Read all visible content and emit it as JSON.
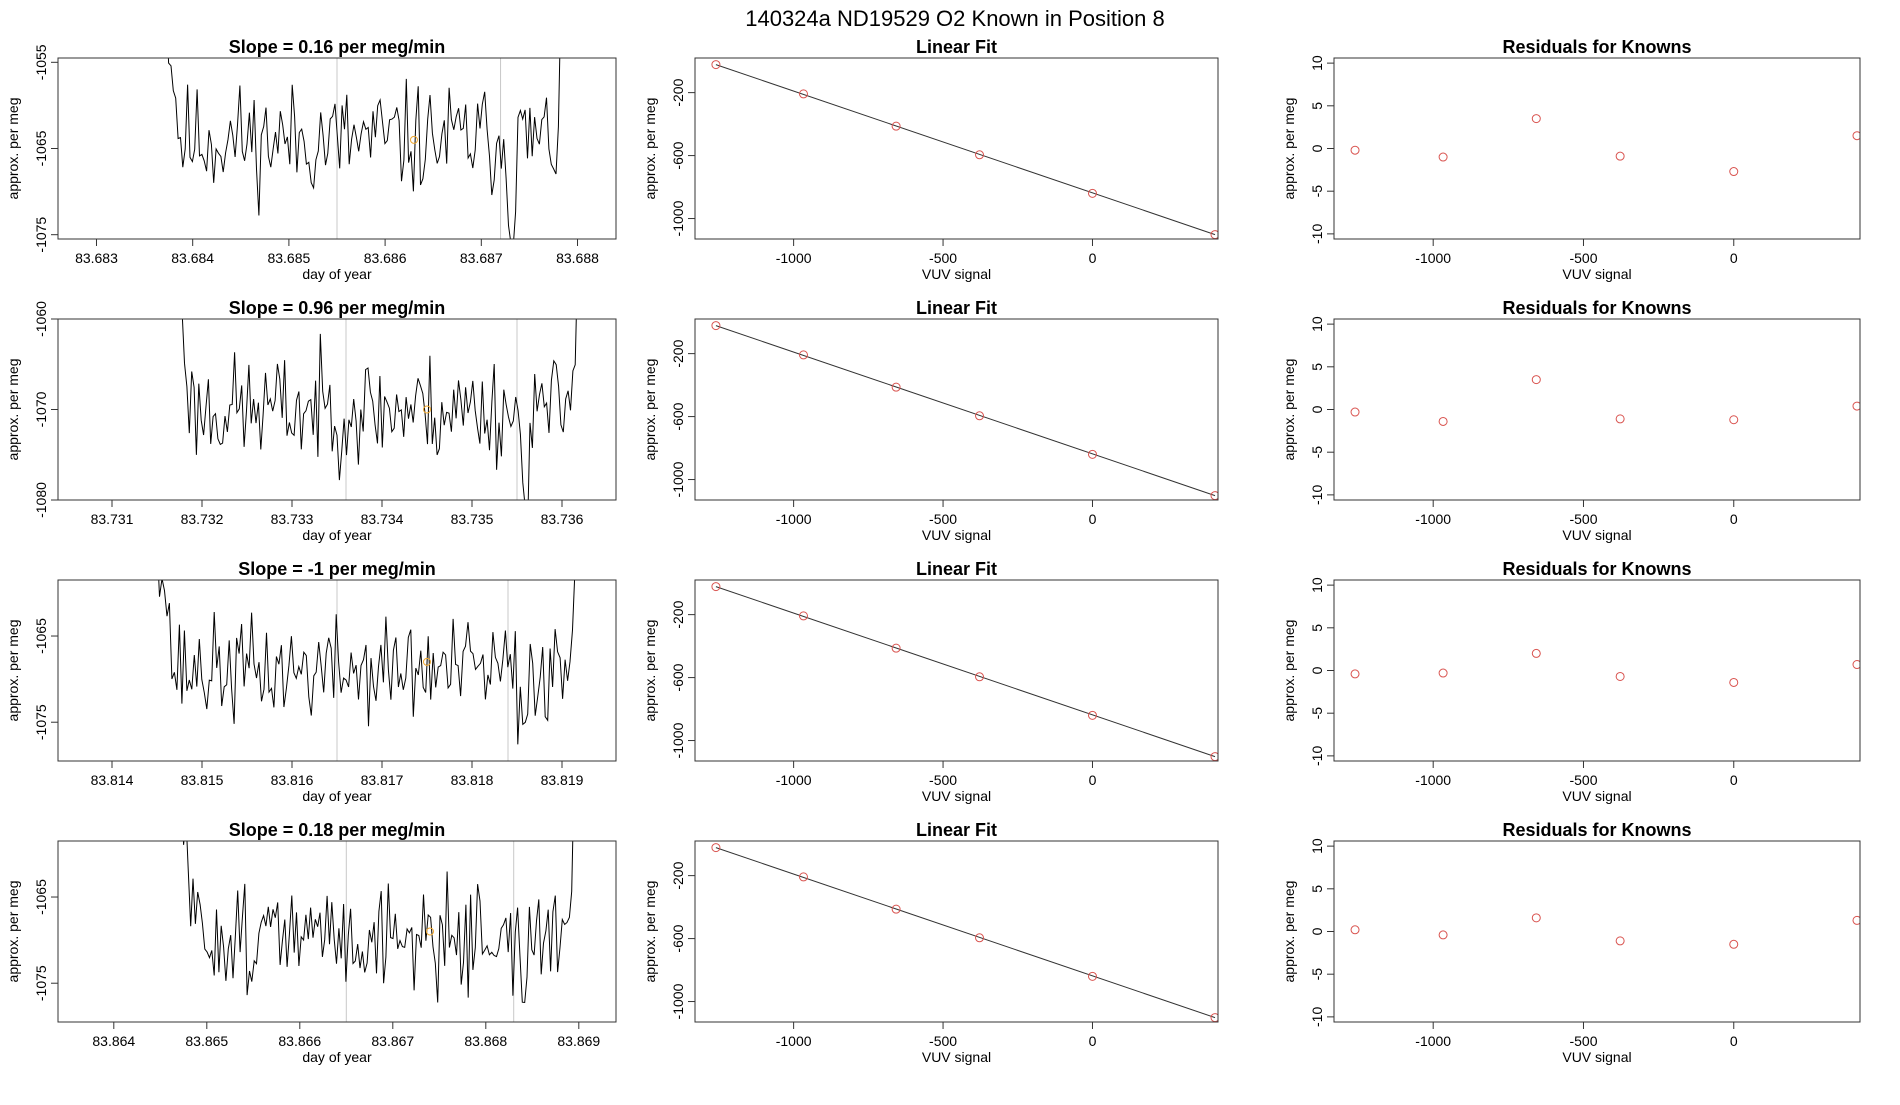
{
  "figure": {
    "title": "140324a      ND19529    O2 Known in Position  8"
  },
  "chart_data": [
    {
      "type": "line",
      "panel": "trace",
      "row": 0,
      "title": "Slope =  0.16  per meg/min",
      "xlabel": "day of year",
      "ylabel": "approx. per meg",
      "xlim": [
        83.6826,
        83.6884
      ],
      "ylim": [
        -1075.5,
        -1054.5
      ],
      "xticks": [
        83.683,
        83.684,
        83.685,
        83.686,
        83.687,
        83.688
      ],
      "xtick_labels": [
        "83.683",
        "83.684",
        "83.685",
        "83.686",
        "83.687",
        "83.688"
      ],
      "yticks": [
        -1055,
        -1065,
        -1075
      ],
      "ytick_labels": [
        "-1055",
        "-1065",
        "-1075"
      ],
      "vlines": [
        83.6855,
        83.6872
      ],
      "marker": {
        "x": 83.6863,
        "y": -1064
      },
      "trace_start": 83.6837,
      "trace_end": 83.6879,
      "trace_seed": 11,
      "trace_level": -1064,
      "trace_spread": 3.2,
      "grid": false,
      "legend": "none"
    },
    {
      "type": "scatter",
      "panel": "fit",
      "row": 0,
      "title": "Linear Fit",
      "xlabel": "VUV signal",
      "ylabel": "approx. per meg",
      "xlim": [
        -1330,
        420
      ],
      "ylim": [
        -1130,
        20
      ],
      "xticks": [
        -1000,
        -500,
        0
      ],
      "xtick_labels": [
        "-1000",
        "-500",
        "0"
      ],
      "yticks": [
        -200,
        -600,
        -1000
      ],
      "ytick_labels": [
        "-200",
        "-600",
        "-1000"
      ],
      "x": [
        -1260,
        -967,
        -657,
        -378,
        0,
        410
      ],
      "y": [
        -22,
        -208,
        -413,
        -595,
        -840,
        -1102
      ],
      "fit_line": {
        "x": [
          -1260,
          410
        ],
        "y": [
          -22,
          -1102
        ]
      },
      "grid": false,
      "legend": "none"
    },
    {
      "type": "scatter",
      "panel": "residuals",
      "row": 0,
      "title": "Residuals for Knowns",
      "xlabel": "VUV signal",
      "ylabel": "approx. per meg",
      "xlim": [
        -1330,
        420
      ],
      "ylim": [
        -10.6,
        10.6
      ],
      "xticks": [
        -1000,
        -500,
        0
      ],
      "xtick_labels": [
        "-1000",
        "-500",
        "0"
      ],
      "yticks": [
        10,
        5,
        0,
        -5,
        -10
      ],
      "ytick_labels": [
        "10",
        "5",
        "0",
        "-5",
        "-10"
      ],
      "x": [
        -1260,
        -967,
        -657,
        -378,
        0,
        410
      ],
      "y": [
        -0.2,
        -1.0,
        3.5,
        -0.9,
        -2.7,
        1.5
      ],
      "grid": false,
      "legend": "none"
    },
    {
      "type": "line",
      "panel": "trace",
      "row": 1,
      "title": "Slope =  0.96  per meg/min",
      "xlabel": "day of year",
      "ylabel": "approx. per meg",
      "xlim": [
        83.7304,
        83.7366
      ],
      "ylim": [
        -1080,
        -1060
      ],
      "xticks": [
        83.731,
        83.732,
        83.733,
        83.734,
        83.735,
        83.736
      ],
      "xtick_labels": [
        "83.731",
        "83.732",
        "83.733",
        "83.734",
        "83.735",
        "83.736"
      ],
      "yticks": [
        -1060,
        -1070,
        -1080
      ],
      "ytick_labels": [
        "-1060",
        "-1070",
        "-1080"
      ],
      "vlines": [
        83.7336,
        83.7355
      ],
      "marker": {
        "x": 83.7345,
        "y": -1070
      },
      "trace_start": 83.7317,
      "trace_end": 83.7362,
      "trace_seed": 23,
      "trace_level": -1070,
      "trace_spread": 3.0,
      "grid": false,
      "legend": "none"
    },
    {
      "type": "scatter",
      "panel": "fit",
      "row": 1,
      "title": "Linear Fit",
      "xlabel": "VUV signal",
      "ylabel": "approx. per meg",
      "xlim": [
        -1330,
        420
      ],
      "ylim": [
        -1130,
        20
      ],
      "xticks": [
        -1000,
        -500,
        0
      ],
      "xtick_labels": [
        "-1000",
        "-500",
        "0"
      ],
      "yticks": [
        -200,
        -600,
        -1000
      ],
      "ytick_labels": [
        "-200",
        "-600",
        "-1000"
      ],
      "x": [
        -1260,
        -967,
        -657,
        -378,
        0,
        410
      ],
      "y": [
        -22,
        -208,
        -413,
        -595,
        -840,
        -1102
      ],
      "fit_line": {
        "x": [
          -1260,
          410
        ],
        "y": [
          -22,
          -1102
        ]
      },
      "grid": false,
      "legend": "none"
    },
    {
      "type": "scatter",
      "panel": "residuals",
      "row": 1,
      "title": "Residuals for Knowns",
      "xlabel": "VUV signal",
      "ylabel": "approx. per meg",
      "xlim": [
        -1330,
        420
      ],
      "ylim": [
        -10.6,
        10.6
      ],
      "xticks": [
        -1000,
        -500,
        0
      ],
      "xtick_labels": [
        "-1000",
        "-500",
        "0"
      ],
      "yticks": [
        10,
        5,
        0,
        -5,
        -10
      ],
      "ytick_labels": [
        "10",
        "5",
        "0",
        "-5",
        "-10"
      ],
      "x": [
        -1260,
        -967,
        -657,
        -378,
        0,
        410
      ],
      "y": [
        -0.3,
        -1.4,
        3.5,
        -1.1,
        -1.2,
        0.4
      ],
      "grid": false,
      "legend": "none"
    },
    {
      "type": "line",
      "panel": "trace",
      "row": 2,
      "title": "Slope =  -1  per meg/min",
      "xlabel": "day of year",
      "ylabel": "approx. per meg",
      "xlim": [
        83.8134,
        83.8196
      ],
      "ylim": [
        -1079.5,
        -1058.5
      ],
      "xticks": [
        83.814,
        83.815,
        83.816,
        83.817,
        83.818,
        83.819
      ],
      "xtick_labels": [
        "83.814",
        "83.815",
        "83.816",
        "83.817",
        "83.818",
        "83.819"
      ],
      "yticks": [
        -1065,
        -1075
      ],
      "ytick_labels": [
        "-1065",
        "-1075"
      ],
      "vlines": [
        83.8165,
        83.8184
      ],
      "marker": {
        "x": 83.8175,
        "y": -1068
      },
      "trace_start": 83.8145,
      "trace_end": 83.8192,
      "trace_seed": 37,
      "trace_level": -1069,
      "trace_spread": 3.0,
      "grid": false,
      "legend": "none"
    },
    {
      "type": "scatter",
      "panel": "fit",
      "row": 2,
      "title": "Linear Fit",
      "xlabel": "VUV signal",
      "ylabel": "approx. per meg",
      "xlim": [
        -1330,
        420
      ],
      "ylim": [
        -1130,
        20
      ],
      "xticks": [
        -1000,
        -500,
        0
      ],
      "xtick_labels": [
        "-1000",
        "-500",
        "0"
      ],
      "yticks": [
        -200,
        -600,
        -1000
      ],
      "ytick_labels": [
        "-200",
        "-600",
        "-1000"
      ],
      "x": [
        -1260,
        -967,
        -657,
        -378,
        0,
        410
      ],
      "y": [
        -22,
        -208,
        -413,
        -595,
        -840,
        -1102
      ],
      "fit_line": {
        "x": [
          -1260,
          410
        ],
        "y": [
          -22,
          -1102
        ]
      },
      "grid": false,
      "legend": "none"
    },
    {
      "type": "scatter",
      "panel": "residuals",
      "row": 2,
      "title": "Residuals for Knowns",
      "xlabel": "VUV signal",
      "ylabel": "approx. per meg",
      "xlim": [
        -1330,
        420
      ],
      "ylim": [
        -10.6,
        10.6
      ],
      "xticks": [
        -1000,
        -500,
        0
      ],
      "xtick_labels": [
        "-1000",
        "-500",
        "0"
      ],
      "yticks": [
        10,
        5,
        0,
        -5,
        -10
      ],
      "ytick_labels": [
        "10",
        "5",
        "0",
        "-5",
        "-10"
      ],
      "x": [
        -1260,
        -967,
        -657,
        -378,
        0,
        410
      ],
      "y": [
        -0.4,
        -0.3,
        2.0,
        -0.7,
        -1.4,
        0.7
      ],
      "grid": false,
      "legend": "none"
    },
    {
      "type": "line",
      "panel": "trace",
      "row": 3,
      "title": "Slope =  0.18  per meg/min",
      "xlabel": "day of year",
      "ylabel": "approx. per meg",
      "xlim": [
        83.8634,
        83.8694
      ],
      "ylim": [
        -1079.5,
        -1058.5
      ],
      "xticks": [
        83.864,
        83.865,
        83.866,
        83.867,
        83.868,
        83.869
      ],
      "xtick_labels": [
        "83.864",
        "83.865",
        "83.866",
        "83.867",
        "83.868",
        "83.869"
      ],
      "yticks": [
        -1065,
        -1075
      ],
      "ytick_labels": [
        "-1065",
        "-1075"
      ],
      "vlines": [
        83.8665,
        83.8683
      ],
      "marker": {
        "x": 83.8674,
        "y": -1069
      },
      "trace_start": 83.8647,
      "trace_end": 83.869,
      "trace_seed": 51,
      "trace_level": -1069.5,
      "trace_spread": 3.0,
      "grid": false,
      "legend": "none"
    },
    {
      "type": "scatter",
      "panel": "fit",
      "row": 3,
      "title": "Linear Fit",
      "xlabel": "VUV signal",
      "ylabel": "approx. per meg",
      "xlim": [
        -1330,
        420
      ],
      "ylim": [
        -1130,
        20
      ],
      "xticks": [
        -1000,
        -500,
        0
      ],
      "xtick_labels": [
        "-1000",
        "-500",
        "0"
      ],
      "yticks": [
        -200,
        -600,
        -1000
      ],
      "ytick_labels": [
        "-200",
        "-600",
        "-1000"
      ],
      "x": [
        -1260,
        -967,
        -657,
        -378,
        0,
        410
      ],
      "y": [
        -22,
        -208,
        -413,
        -595,
        -840,
        -1102
      ],
      "fit_line": {
        "x": [
          -1260,
          410
        ],
        "y": [
          -22,
          -1102
        ]
      },
      "grid": false,
      "legend": "none"
    },
    {
      "type": "scatter",
      "panel": "residuals",
      "row": 3,
      "title": "Residuals for Knowns",
      "xlabel": "VUV signal",
      "ylabel": "approx. per meg",
      "xlim": [
        -1330,
        420
      ],
      "ylim": [
        -10.6,
        10.6
      ],
      "xticks": [
        -1000,
        -500,
        0
      ],
      "xtick_labels": [
        "-1000",
        "-500",
        "0"
      ],
      "yticks": [
        10,
        5,
        0,
        -5,
        -10
      ],
      "ytick_labels": [
        "10",
        "5",
        "0",
        "-5",
        "-10"
      ],
      "x": [
        -1260,
        -967,
        -657,
        -378,
        0,
        410
      ],
      "y": [
        0.2,
        -0.4,
        1.6,
        -1.1,
        -1.5,
        1.3
      ],
      "grid": false,
      "legend": "none"
    }
  ],
  "colors": {
    "trace_line": "#000000",
    "fit_line": "#333333",
    "points": "#d9534f",
    "known_marker": "#f0a830",
    "vline": "#c8c8c8",
    "frame": "#333333",
    "text": "#000000"
  }
}
